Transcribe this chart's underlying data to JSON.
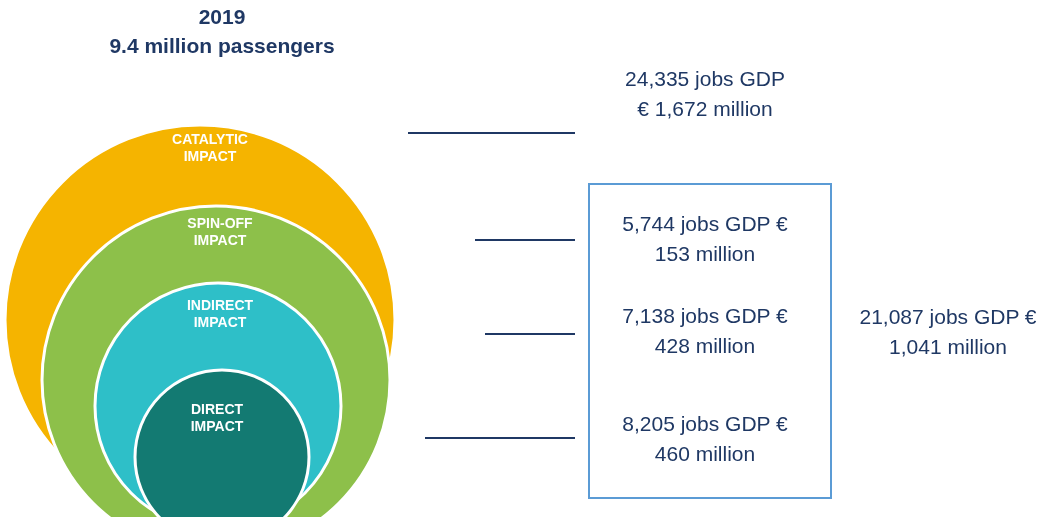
{
  "chart_data": {
    "type": "other",
    "title": "2019",
    "subtitle": "9.4 million passengers",
    "categories": [
      "CATALYTIC IMPACT",
      "SPIN-OFF IMPACT",
      "INDIRECT IMPACT",
      "DIRECT IMPACT"
    ],
    "colors": [
      "#f5b400",
      "#8dc04a",
      "#2ebfc8",
      "#137a72"
    ],
    "values": [
      24335,
      5744,
      7138,
      8205
    ],
    "value_labels": [
      "24,335 jobs GDP € 1,672 million",
      "5,744 jobs GDP € 153 million",
      "7,138 jobs GDP € 428 million",
      "8,205 jobs GDP € 460 million"
    ],
    "annotations": [
      "21,087 jobs GDP € 1,041 million"
    ]
  }
}
